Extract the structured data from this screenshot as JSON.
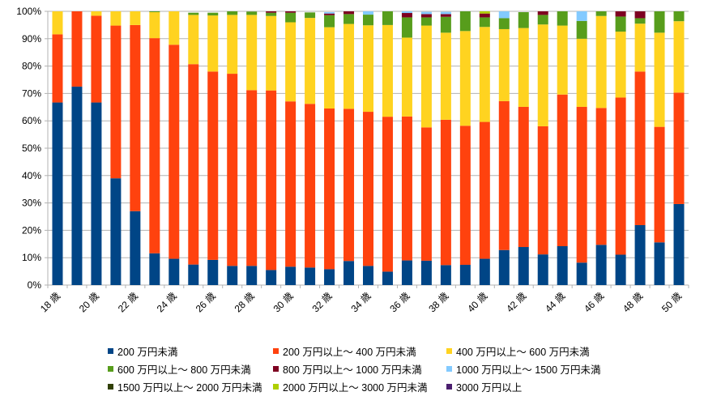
{
  "chart_data": {
    "type": "bar",
    "stacked": true,
    "grid": true,
    "legend_position": "bottom",
    "ylim": [
      0,
      100
    ],
    "y_ticks": [
      "0%",
      "10%",
      "20%",
      "30%",
      "40%",
      "50%",
      "60%",
      "70%",
      "80%",
      "90%",
      "100%"
    ],
    "categories": [
      "18 歳",
      "19 歳",
      "20 歳",
      "21 歳",
      "22 歳",
      "23 歳",
      "24 歳",
      "25 歳",
      "26 歳",
      "27 歳",
      "28 歳",
      "29 歳",
      "30 歳",
      "31 歳",
      "32 歳",
      "33 歳",
      "34 歳",
      "35 歳",
      "36 歳",
      "37 歳",
      "38 歳",
      "39 歳",
      "40 歳",
      "41 歳",
      "42 歳",
      "43 歳",
      "44 歳",
      "45 歳",
      "46 歳",
      "47 歳",
      "48 歳",
      "49 歳",
      "50 歳"
    ],
    "x_tick_labels": [
      "18 歳",
      "",
      "20 歳",
      "",
      "22 歳",
      "",
      "24 歳",
      "",
      "26 歳",
      "",
      "28 歳",
      "",
      "30 歳",
      "",
      "32 歳",
      "",
      "34 歳",
      "",
      "36 歳",
      "",
      "38 歳",
      "",
      "40 歳",
      "",
      "42 歳",
      "",
      "44 歳",
      "",
      "46 歳",
      "",
      "48 歳",
      "",
      "50 歳"
    ],
    "series": [
      {
        "name": "200 万円未満",
        "color": "#004586",
        "values": [
          66.7,
          72.5,
          66.7,
          39,
          27,
          11.6,
          9.6,
          7.5,
          9.2,
          7,
          7,
          5.5,
          6.7,
          6.4,
          5.8,
          8.8,
          7,
          4.9,
          9,
          8.9,
          7.3,
          7.4,
          9.6,
          12.8,
          13.9,
          11.2,
          14.2,
          8.2,
          14.7,
          11.1,
          21.9,
          15.6,
          29.6
        ]
      },
      {
        "name": "200 万円以上～ 400 万円未満",
        "color": "#FF420E",
        "values": [
          24.9,
          27.5,
          31.7,
          55.8,
          68,
          78.6,
          78.2,
          73.2,
          68.8,
          70.2,
          64.2,
          65.6,
          60.4,
          59.8,
          58.7,
          55.6,
          56.3,
          56.6,
          52.6,
          48.7,
          53.1,
          50.8,
          50,
          54.4,
          51.2,
          46.8,
          55.4,
          56.9,
          50,
          57.4,
          56.1,
          42.2,
          40.7
        ]
      },
      {
        "name": "400 万円以上～ 600 万円未満",
        "color": "#FFD320",
        "values": [
          8.4,
          0,
          1.6,
          5.2,
          5,
          9.5,
          12.2,
          18,
          20.5,
          21.5,
          27.5,
          27.2,
          28.9,
          31.4,
          29.7,
          31,
          31.6,
          33.5,
          28.8,
          37.2,
          31.8,
          34.6,
          34.7,
          26.3,
          28.8,
          37.2,
          25.2,
          24.9,
          33.6,
          24.1,
          17.5,
          34.4,
          26.1
        ]
      },
      {
        "name": "600 万円以上～ 800 万円未満",
        "color": "#579D1C",
        "values": [
          0,
          0,
          0,
          0,
          0,
          0.3,
          0,
          0.8,
          1,
          1.3,
          1.2,
          1.2,
          3.5,
          2,
          4.4,
          3.6,
          3.9,
          5,
          7.4,
          3,
          5.8,
          7.2,
          3.5,
          4,
          5.8,
          3.5,
          5.2,
          6.5,
          1.7,
          5.5,
          2,
          7.8,
          3.6
        ]
      },
      {
        "name": "800 万円以上～ 1000 万円未満",
        "color": "#7E0021",
        "values": [
          0,
          0,
          0,
          0,
          0,
          0,
          0,
          0,
          0,
          0,
          0,
          0.5,
          0.5,
          0,
          0.6,
          1,
          0,
          0,
          1.6,
          1.2,
          1,
          0,
          1.4,
          0,
          0,
          1.3,
          0,
          0,
          0,
          1.9,
          2.5,
          0,
          0
        ]
      },
      {
        "name": "1000 万円以上～ 1500 万円未満",
        "color": "#83CAFF",
        "values": [
          0,
          0,
          0,
          0,
          0,
          0,
          0,
          0,
          0,
          0,
          0,
          0,
          0,
          0,
          0.5,
          0,
          1.2,
          0,
          0.6,
          0.8,
          0.8,
          0,
          0,
          2.5,
          0,
          0,
          0,
          3.5,
          0,
          0,
          0,
          0,
          0
        ]
      },
      {
        "name": "1500 万円以上～ 2000 万円未満",
        "color": "#314004",
        "values": [
          0,
          0,
          0,
          0,
          0,
          0,
          0,
          0,
          0,
          0,
          0,
          0,
          0,
          0,
          0,
          0,
          0,
          0,
          0,
          0,
          0,
          0,
          0,
          0,
          0,
          0,
          0,
          0,
          0,
          0,
          0,
          0,
          0
        ]
      },
      {
        "name": "2000 万円以上～ 3000 万円未満",
        "color": "#AECF00",
        "values": [
          0,
          0,
          0,
          0,
          0,
          0,
          0,
          0,
          0,
          0,
          0,
          0,
          0,
          0,
          0,
          0,
          0,
          0,
          0,
          0,
          0,
          0,
          0.8,
          0,
          0,
          0,
          0,
          0,
          0,
          0,
          0,
          0,
          0
        ]
      },
      {
        "name": "3000 万円以上",
        "color": "#4B1F6F",
        "values": [
          0,
          0,
          0,
          0,
          0,
          0,
          0,
          0,
          0,
          0,
          0,
          0,
          0,
          0,
          0,
          0,
          0,
          0,
          0,
          0,
          0,
          0,
          0,
          0,
          0,
          0,
          0,
          0,
          0,
          0,
          0,
          0,
          0
        ]
      }
    ]
  }
}
